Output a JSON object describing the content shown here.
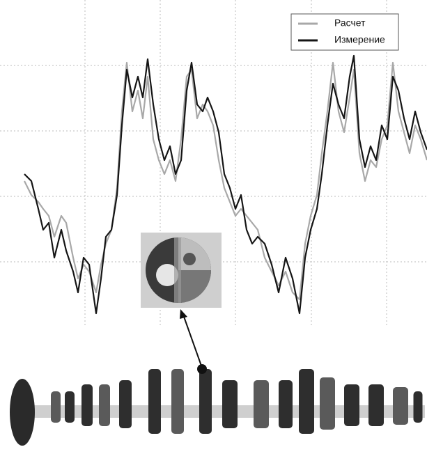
{
  "chart_data": {
    "type": "line",
    "x": [
      3.5,
      4.5,
      5.5,
      6.2,
      7,
      7.8,
      8.8,
      9.5,
      10.5,
      11.2,
      12,
      12.8,
      13.8,
      14.5,
      15.2,
      16,
      16.8,
      17.5,
      18.2,
      19,
      19.8,
      20.5,
      21.2,
      22,
      22.8,
      23.6,
      24.4,
      25.2,
      26,
      26.8,
      27.5,
      28.3,
      29.1,
      29.8,
      30.6,
      31.4,
      32.2,
      33,
      33.8,
      34.6,
      35.4,
      36.2,
      37,
      38,
      39,
      40,
      41,
      42,
      43,
      43.8,
      44.6,
      45.5,
      46.2,
      47,
      47.8,
      48.6,
      49.4,
      50.2,
      50.8,
      51.6,
      52.4,
      53.2,
      54,
      54.8,
      55.6,
      56.4,
      57.2,
      58,
      58.8,
      59.6,
      60.4,
      61.3
    ],
    "series": [
      {
        "name": "Расчет",
        "color": "#a8a8a8",
        "values": [
          21,
          19,
          18,
          17,
          16,
          13,
          16,
          15,
          10,
          7,
          9,
          8,
          5,
          9,
          12,
          14,
          20,
          31,
          38,
          31,
          34,
          30,
          36,
          27,
          24,
          22,
          24,
          21,
          27,
          36,
          37,
          30,
          32,
          31,
          29,
          24,
          20,
          18,
          16,
          17,
          16,
          15,
          14,
          10,
          8,
          6,
          8,
          5,
          4,
          12,
          16,
          19,
          25,
          31,
          38,
          31,
          28,
          33,
          37,
          25,
          21,
          24,
          23,
          27,
          29,
          38,
          31,
          28,
          25,
          29,
          27,
          24
        ]
      },
      {
        "name": "Измерение",
        "color": "#151515",
        "values": [
          22,
          21,
          17,
          14,
          15,
          10,
          14,
          11,
          8,
          5,
          10,
          9,
          2,
          7,
          13,
          14,
          19,
          29,
          37,
          33,
          36,
          33,
          38.5,
          32,
          27,
          24,
          26,
          22,
          24,
          34,
          38,
          32,
          31,
          33,
          31,
          28,
          22,
          20,
          17,
          19,
          14,
          12,
          13,
          12,
          9,
          5,
          10,
          7,
          2,
          10,
          14,
          17,
          22,
          29,
          35,
          32,
          30,
          36,
          39,
          27,
          23,
          26,
          24,
          29,
          27,
          36,
          34,
          30,
          27,
          31,
          28,
          25.5
        ]
      }
    ],
    "xlim": [
      0,
      61.3
    ],
    "ylim": [
      0,
      47
    ],
    "xticks": [
      12.2,
      23,
      33.8,
      44.7,
      55.5
    ],
    "yticks": [
      9.4,
      18.8,
      28.2,
      37.6
    ],
    "grid": true,
    "legend": "upper right"
  }
}
